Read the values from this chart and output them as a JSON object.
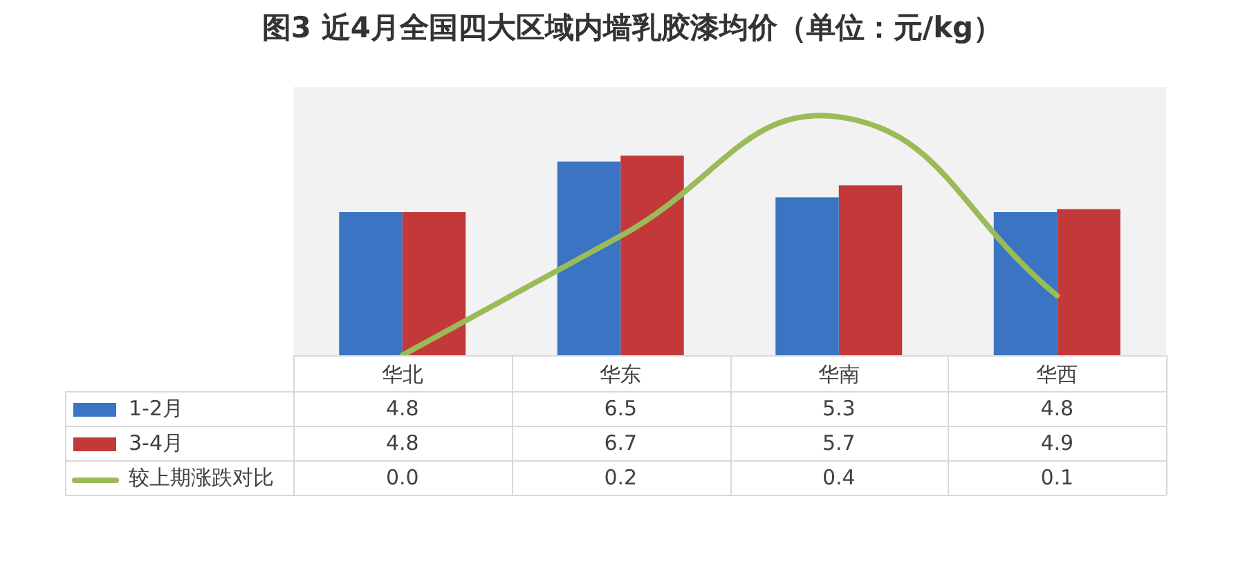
{
  "chart_data": {
    "type": "bar",
    "title": "图3 近4月全国四大区域内墙乳胶漆均价（单位：元/kg）",
    "categories": [
      "华北",
      "华东",
      "华南",
      "华西"
    ],
    "series": [
      {
        "name": "1-2月",
        "color": "#3a74c3",
        "values": [
          4.8,
          6.5,
          5.3,
          4.8
        ],
        "value_labels": [
          "4.8",
          "6.5",
          "5.3",
          "4.8"
        ]
      },
      {
        "name": "3-4月",
        "color": "#c3393a",
        "values": [
          4.8,
          6.7,
          5.7,
          4.9
        ],
        "value_labels": [
          "4.8",
          "6.7",
          "5.7",
          "4.9"
        ]
      },
      {
        "name": "较上期涨跌对比",
        "type": "line",
        "axis": "y2",
        "color": "#9bbb59",
        "values": [
          0.0,
          0.2,
          0.4,
          0.1
        ],
        "value_labels": [
          "0.0",
          "0.2",
          "0.4",
          "0.1"
        ]
      }
    ],
    "ylim": [
      0,
      9
    ],
    "y2lim": [
      0,
      0.45
    ],
    "tick_labels": "x",
    "legend": "bottom left"
  }
}
